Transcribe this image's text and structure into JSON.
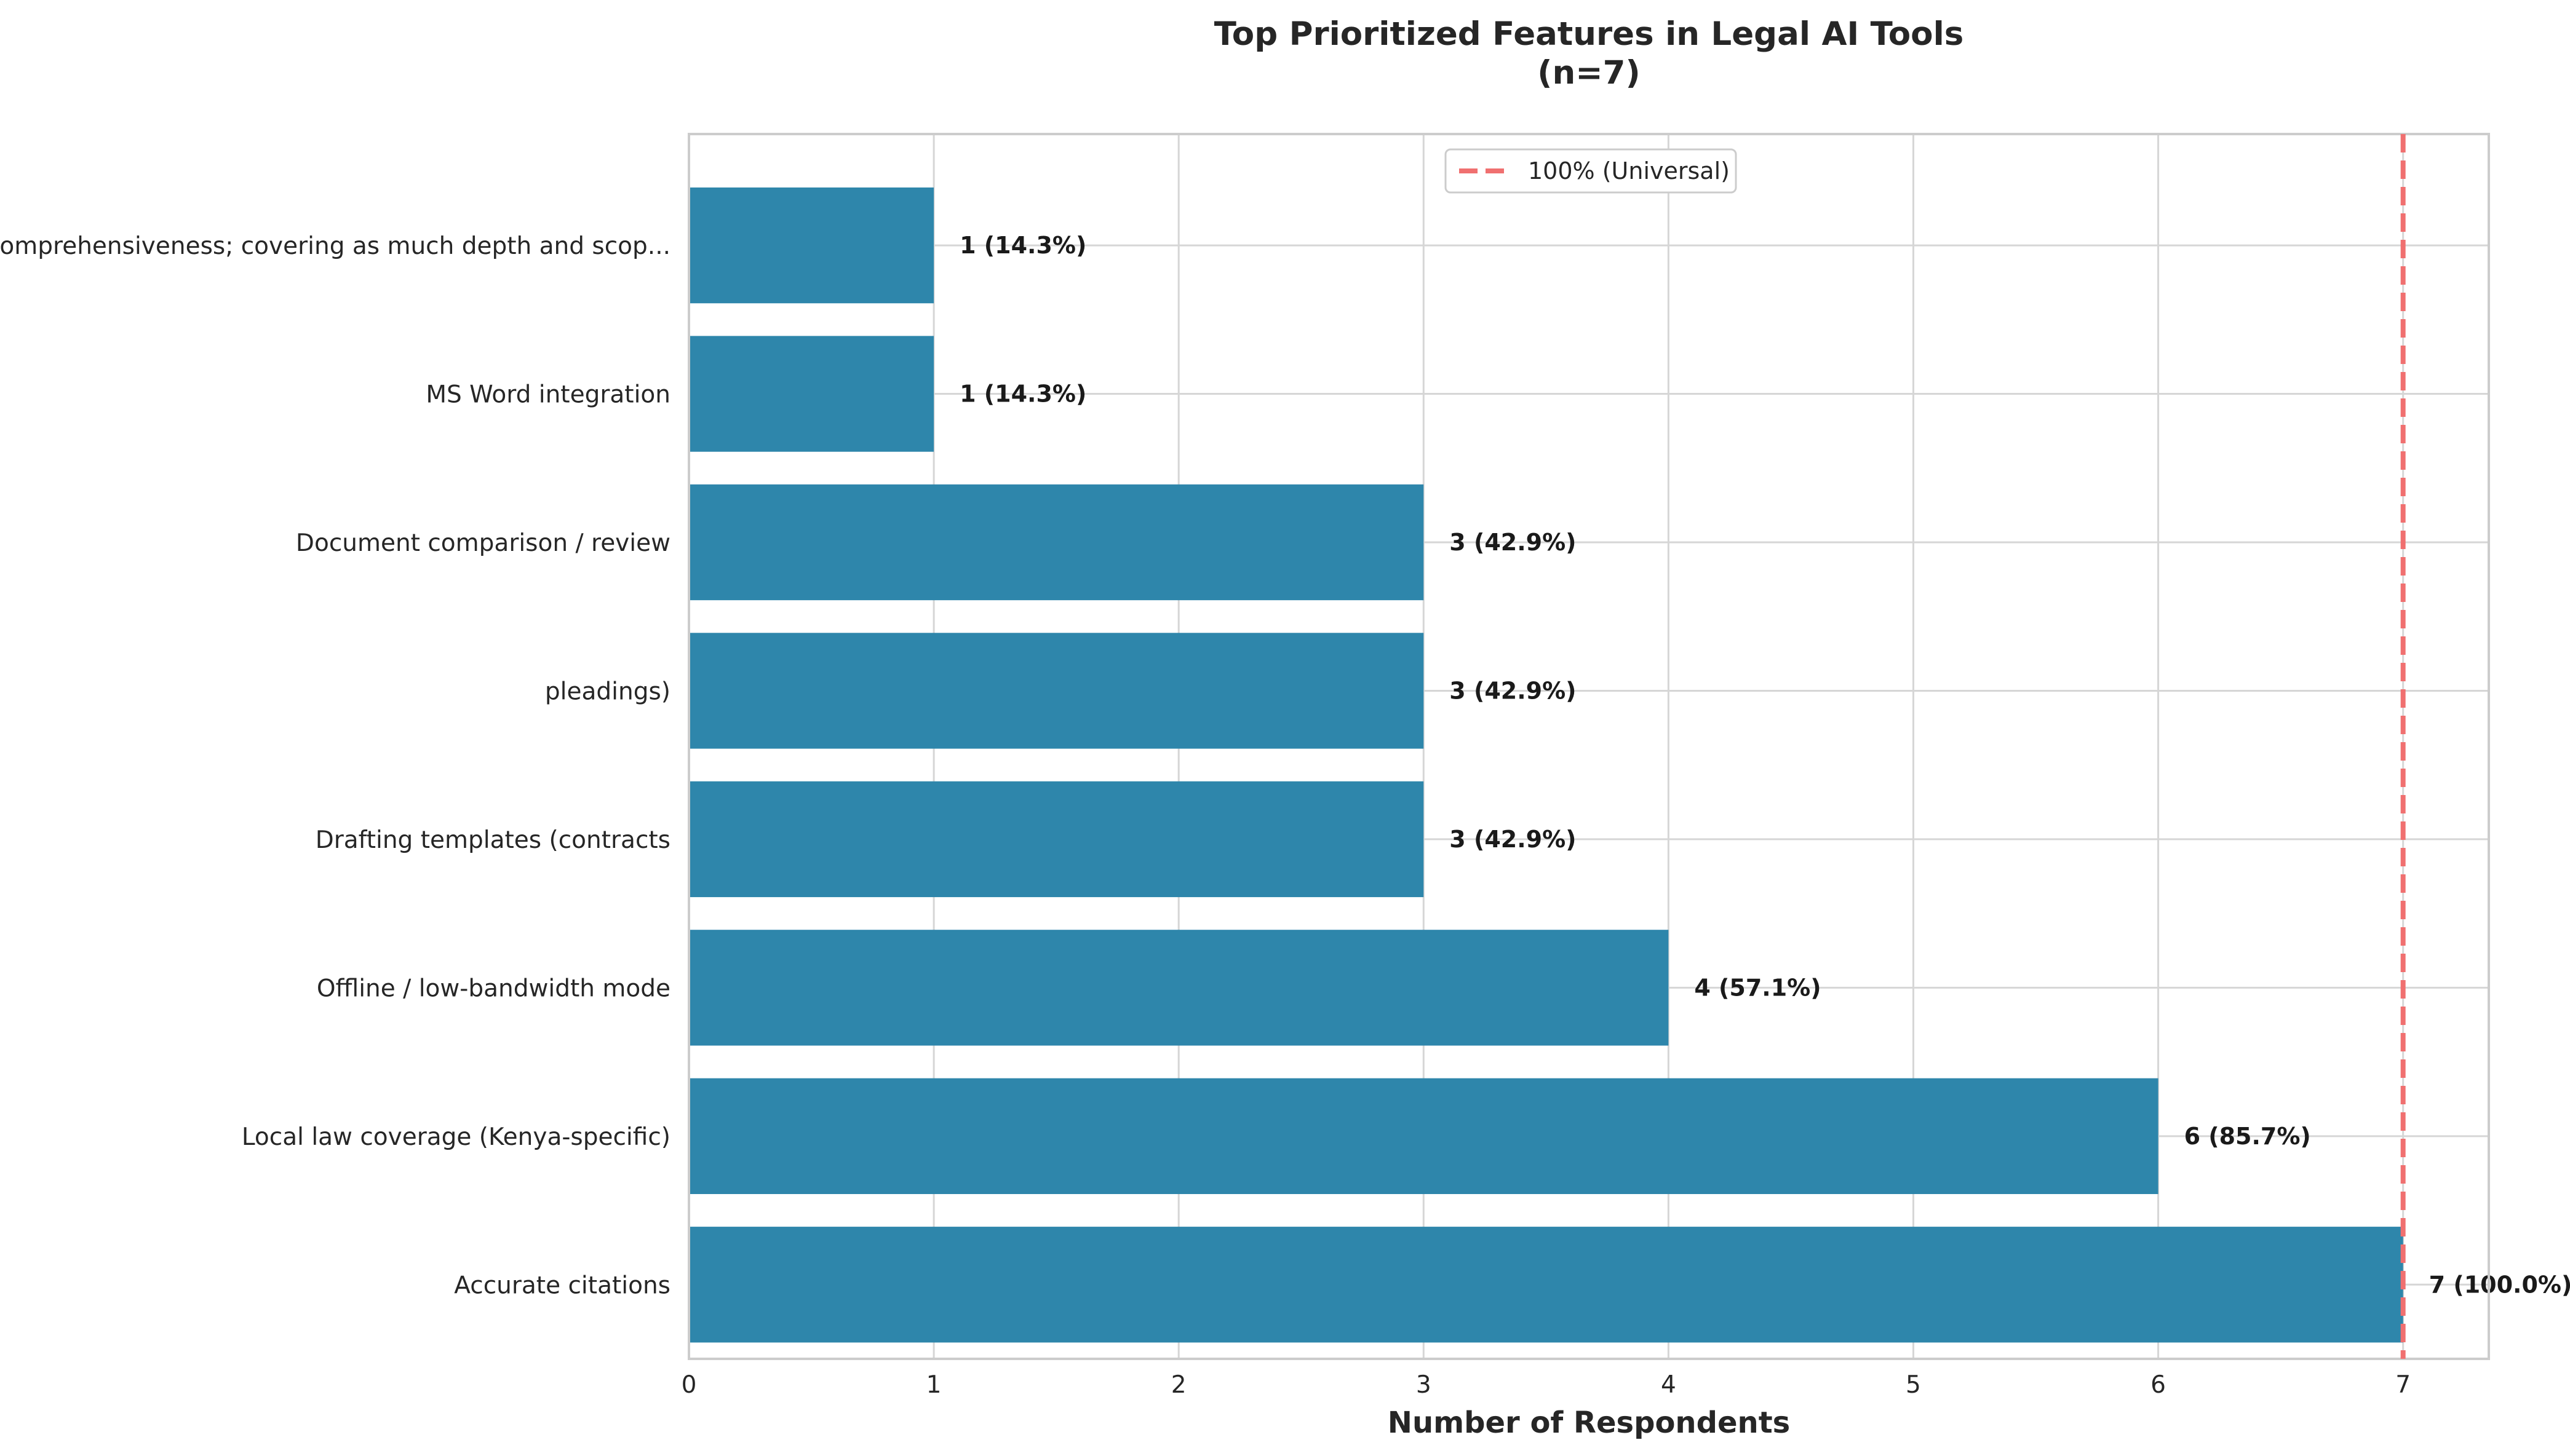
{
  "chart_data": {
    "type": "bar",
    "orientation": "horizontal",
    "title": "Top Prioritized Features in Legal AI Tools",
    "subtitle": "(n=7)",
    "xlabel": "Number of Respondents",
    "ylabel": "",
    "xlim": [
      0,
      7.35
    ],
    "xticks": [
      "0",
      "1",
      "2",
      "3",
      "4",
      "5",
      "6",
      "7"
    ],
    "grid": true,
    "bar_color": "#2e86ab",
    "categories": [
      "Comprehensiveness; covering as much depth and scop...",
      "MS Word integration",
      "Document comparison / review",
      "pleadings)",
      "Drafting templates (contracts",
      "Offline / low-bandwidth mode",
      "Local law coverage (Kenya-specific)",
      "Accurate citations"
    ],
    "values": [
      1,
      1,
      3,
      3,
      3,
      4,
      6,
      7
    ],
    "data_labels": [
      "1 (14.3%)",
      "1 (14.3%)",
      "3 (42.9%)",
      "3 (42.9%)",
      "3 (42.9%)",
      "4 (57.1%)",
      "6 (85.7%)",
      "7 (100.0%)"
    ],
    "reference_line": {
      "value": 7,
      "label": "100% (Universal)",
      "color": "#f07070",
      "style": "dashed"
    },
    "legend_position": "top-center"
  }
}
